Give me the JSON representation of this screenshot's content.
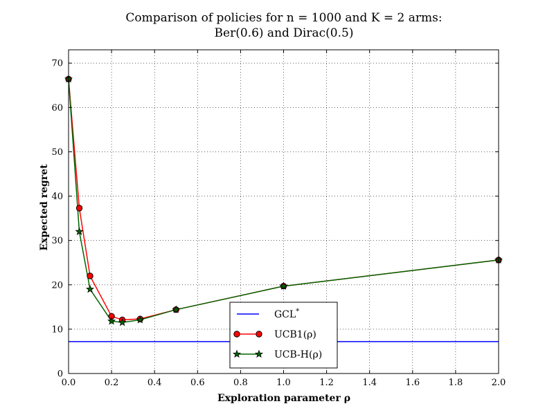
{
  "chart_data": {
    "type": "line",
    "title_line1": "Comparison of policies for n = 1000 and K = 2 arms:",
    "title_line2": "Ber(0.6) and Dirac(0.5)",
    "xlabel": "Exploration parameter ρ",
    "ylabel": "Expected regret",
    "xlim": [
      0.0,
      2.0
    ],
    "ylim": [
      0,
      73
    ],
    "xticks": [
      0.0,
      0.2,
      0.4,
      0.6,
      0.8,
      1.0,
      1.2,
      1.4,
      1.6,
      1.8,
      2.0
    ],
    "xtick_labels": [
      "0.0",
      "0.2",
      "0.4",
      "0.6",
      "0.8",
      "1.0",
      "1.2",
      "1.4",
      "1.6",
      "1.8",
      "2.0"
    ],
    "yticks": [
      0,
      10,
      20,
      30,
      40,
      50,
      60,
      70
    ],
    "ytick_labels": [
      "0",
      "10",
      "20",
      "30",
      "40",
      "50",
      "60",
      "70"
    ],
    "grid": true,
    "legend_position": "lower-center",
    "series": [
      {
        "name": "GCL*",
        "legend_label": "GCL",
        "legend_sup": "*",
        "color": "#0000ff",
        "marker": "none",
        "x": [
          0.0,
          2.0
        ],
        "y": [
          7.2,
          7.2
        ]
      },
      {
        "name": "UCB1(ρ)",
        "legend_label": "UCB1(ρ)",
        "legend_sup": "",
        "color": "#ff0000",
        "marker": "circle",
        "x": [
          0.0,
          0.05,
          0.1,
          0.2,
          0.25,
          0.333,
          0.5,
          1.0,
          2.0
        ],
        "y": [
          66.4,
          37.3,
          22.0,
          12.9,
          12.1,
          12.3,
          14.4,
          19.7,
          25.6
        ]
      },
      {
        "name": "UCB-H(ρ)",
        "legend_label": "UCB-H(ρ)",
        "legend_sup": "",
        "color": "#006400",
        "marker": "star",
        "x": [
          0.0,
          0.05,
          0.1,
          0.2,
          0.25,
          0.333,
          0.5,
          1.0,
          2.0
        ],
        "y": [
          66.4,
          32.0,
          19.0,
          11.8,
          11.5,
          12.1,
          14.4,
          19.7,
          25.6
        ]
      }
    ]
  }
}
